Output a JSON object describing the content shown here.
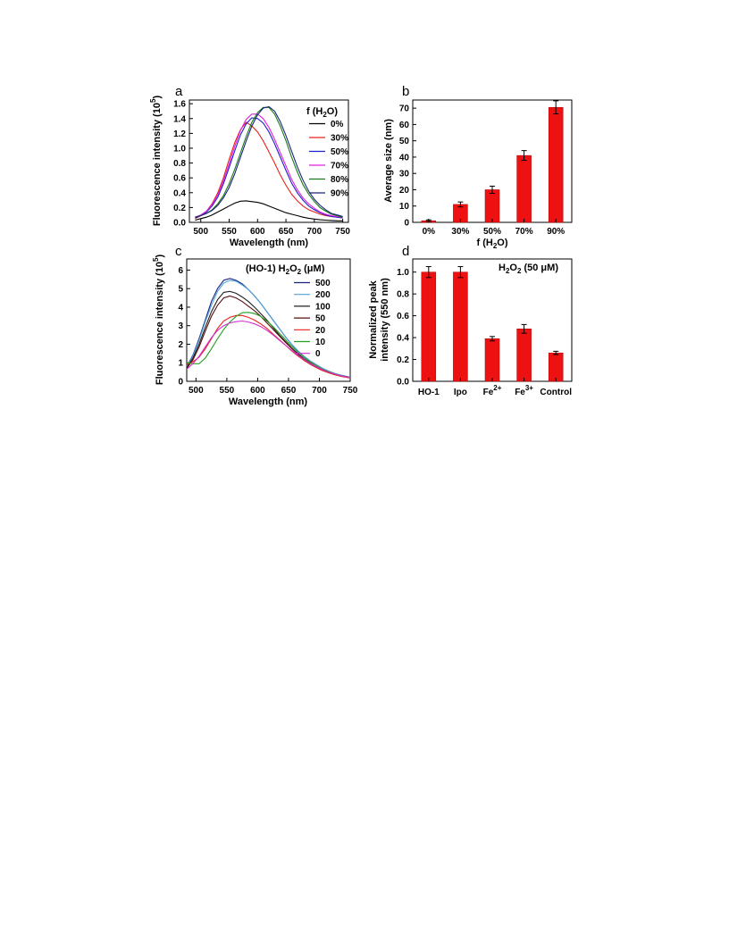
{
  "chart_data": [
    {
      "panel": "a",
      "type": "line",
      "xlabel": "Wavelength (nm)",
      "ylabel": "Fluorescence intensity (10 5)",
      "ylabel_main": "Fluorescence intensity (10",
      "ylabel_sup": "5",
      "ylabel_close": ")",
      "xlim": [
        480,
        760
      ],
      "ylim": [
        0,
        1.65
      ],
      "xticks": [
        "500",
        "550",
        "600",
        "650",
        "700",
        "750"
      ],
      "yticks": [
        "0.0",
        "0.2",
        "0.4",
        "0.6",
        "0.8",
        "1.0",
        "1.2",
        "1.4",
        "1.6"
      ],
      "legend_title": "f (H2O)",
      "legend_title_main": "f (H",
      "legend_title_sub": "2",
      "legend_title_close": "O)",
      "legend_position": "top-right",
      "grid": false,
      "x": [
        490,
        500,
        510,
        520,
        530,
        540,
        550,
        560,
        570,
        580,
        590,
        600,
        610,
        620,
        630,
        640,
        650,
        660,
        670,
        680,
        690,
        700,
        710,
        720,
        730,
        740,
        750
      ],
      "series": [
        {
          "name": "0%",
          "color": "#000000",
          "values": [
            0.03,
            0.05,
            0.07,
            0.1,
            0.14,
            0.18,
            0.22,
            0.26,
            0.285,
            0.29,
            0.28,
            0.27,
            0.25,
            0.22,
            0.19,
            0.16,
            0.13,
            0.11,
            0.09,
            0.07,
            0.055,
            0.045,
            0.035,
            0.03,
            0.025,
            0.02,
            0.02
          ]
        },
        {
          "name": "30%",
          "color": "#e8231b",
          "values": [
            0.05,
            0.09,
            0.15,
            0.25,
            0.4,
            0.6,
            0.85,
            1.08,
            1.25,
            1.35,
            1.3,
            1.22,
            1.1,
            0.95,
            0.8,
            0.64,
            0.5,
            0.38,
            0.29,
            0.22,
            0.17,
            0.14,
            0.11,
            0.09,
            0.08,
            0.07,
            0.06
          ]
        },
        {
          "name": "50%",
          "color": "#1f1fc8",
          "values": [
            0.06,
            0.09,
            0.14,
            0.22,
            0.34,
            0.52,
            0.74,
            0.97,
            1.18,
            1.33,
            1.41,
            1.4,
            1.34,
            1.22,
            1.06,
            0.88,
            0.7,
            0.53,
            0.4,
            0.3,
            0.22,
            0.17,
            0.13,
            0.1,
            0.08,
            0.07,
            0.06
          ]
        },
        {
          "name": "70%",
          "color": "#e020e0",
          "values": [
            0.07,
            0.1,
            0.15,
            0.24,
            0.37,
            0.56,
            0.79,
            1.03,
            1.24,
            1.39,
            1.46,
            1.46,
            1.4,
            1.28,
            1.12,
            0.94,
            0.76,
            0.58,
            0.44,
            0.33,
            0.25,
            0.19,
            0.14,
            0.11,
            0.09,
            0.08,
            0.07
          ]
        },
        {
          "name": "80%",
          "color": "#1a7a1a",
          "values": [
            0.07,
            0.09,
            0.12,
            0.17,
            0.25,
            0.36,
            0.52,
            0.72,
            0.94,
            1.16,
            1.35,
            1.48,
            1.55,
            1.55,
            1.46,
            1.3,
            1.1,
            0.88,
            0.68,
            0.51,
            0.38,
            0.28,
            0.2,
            0.15,
            0.11,
            0.09,
            0.07
          ]
        },
        {
          "name": "90%",
          "color": "#1a237e",
          "values": [
            0.07,
            0.09,
            0.12,
            0.16,
            0.23,
            0.33,
            0.47,
            0.66,
            0.88,
            1.1,
            1.3,
            1.45,
            1.54,
            1.56,
            1.5,
            1.36,
            1.17,
            0.96,
            0.75,
            0.57,
            0.42,
            0.31,
            0.23,
            0.17,
            0.12,
            0.1,
            0.08
          ]
        }
      ]
    },
    {
      "panel": "b",
      "type": "bar",
      "xlabel": "f (H2O)",
      "xlabel_main": "f (H",
      "xlabel_sub": "2",
      "xlabel_close": "O)",
      "ylabel": "Average size (nm)",
      "ylim": [
        0,
        75
      ],
      "yticks": [
        "0",
        "10",
        "20",
        "30",
        "40",
        "50",
        "60",
        "70"
      ],
      "categories": [
        "0%",
        "30%",
        "50%",
        "70%",
        "90%"
      ],
      "values": [
        1,
        11,
        20,
        41,
        70.5
      ],
      "errors": [
        0.5,
        1.5,
        2.2,
        3,
        4
      ],
      "bar_color": "#ee1111",
      "grid": false
    },
    {
      "panel": "c",
      "type": "line",
      "xlabel": "Wavelength (nm)",
      "ylabel": "Fluorescence intensity (10 5)",
      "ylabel_main": "Fluorescence intensity (10",
      "ylabel_sup": "5",
      "ylabel_close": ")",
      "xlim": [
        485,
        750
      ],
      "ylim": [
        0,
        6.6
      ],
      "xticks": [
        "500",
        "550",
        "600",
        "650",
        "700",
        "750"
      ],
      "yticks": [
        "0",
        "1",
        "2",
        "3",
        "4",
        "5",
        "6"
      ],
      "legend_title": "(HO-1) H2O2 (μM)",
      "legend_title_a": "(HO-1) H",
      "legend_title_b": "2",
      "legend_title_c": "O",
      "legend_title_d": "2",
      "legend_title_e": " (μM)",
      "legend_position": "top-right",
      "grid": false,
      "x": [
        485,
        495,
        505,
        515,
        525,
        535,
        545,
        555,
        565,
        575,
        585,
        595,
        605,
        615,
        625,
        635,
        645,
        655,
        665,
        675,
        685,
        695,
        705,
        715,
        725,
        735,
        750
      ],
      "series": [
        {
          "name": "500",
          "color": "#1a237e",
          "values": [
            0.8,
            1.4,
            2.3,
            3.3,
            4.3,
            5.0,
            5.45,
            5.55,
            5.45,
            5.25,
            4.95,
            4.6,
            4.2,
            3.75,
            3.3,
            2.85,
            2.4,
            2.0,
            1.65,
            1.35,
            1.1,
            0.9,
            0.7,
            0.55,
            0.42,
            0.33,
            0.22
          ]
        },
        {
          "name": "200",
          "color": "#4fa3d9",
          "values": [
            0.8,
            1.35,
            2.2,
            3.2,
            4.1,
            4.85,
            5.3,
            5.45,
            5.4,
            5.2,
            4.95,
            4.6,
            4.2,
            3.75,
            3.3,
            2.85,
            2.4,
            2.0,
            1.65,
            1.35,
            1.1,
            0.9,
            0.7,
            0.55,
            0.42,
            0.33,
            0.22
          ]
        },
        {
          "name": "100",
          "color": "#222222",
          "values": [
            0.75,
            1.25,
            2.0,
            2.9,
            3.75,
            4.4,
            4.8,
            4.85,
            4.75,
            4.55,
            4.3,
            4.0,
            3.65,
            3.3,
            2.9,
            2.5,
            2.15,
            1.8,
            1.5,
            1.22,
            1.0,
            0.8,
            0.63,
            0.5,
            0.38,
            0.3,
            0.2
          ]
        },
        {
          "name": "50",
          "color": "#5a0f0f",
          "values": [
            0.7,
            1.15,
            1.85,
            2.7,
            3.5,
            4.1,
            4.5,
            4.6,
            4.5,
            4.3,
            4.05,
            3.8,
            3.5,
            3.15,
            2.8,
            2.45,
            2.1,
            1.78,
            1.48,
            1.2,
            0.98,
            0.78,
            0.62,
            0.48,
            0.37,
            0.29,
            0.19
          ]
        },
        {
          "name": "20",
          "color": "#e8231b",
          "values": [
            0.9,
            1.05,
            1.3,
            1.75,
            2.3,
            2.85,
            3.25,
            3.45,
            3.55,
            3.55,
            3.45,
            3.3,
            3.1,
            2.85,
            2.55,
            2.25,
            1.95,
            1.65,
            1.38,
            1.13,
            0.92,
            0.74,
            0.58,
            0.46,
            0.35,
            0.27,
            0.18
          ]
        },
        {
          "name": "10",
          "color": "#22a022",
          "values": [
            1.0,
            0.95,
            0.95,
            1.25,
            1.75,
            2.3,
            2.8,
            3.2,
            3.5,
            3.7,
            3.72,
            3.65,
            3.5,
            3.25,
            2.95,
            2.6,
            2.25,
            1.9,
            1.58,
            1.3,
            1.05,
            0.84,
            0.66,
            0.52,
            0.4,
            0.31,
            0.2
          ]
        },
        {
          "name": "0",
          "color": "#d02fd0",
          "values": [
            0.65,
            0.95,
            1.35,
            1.85,
            2.35,
            2.75,
            3.0,
            3.15,
            3.22,
            3.25,
            3.2,
            3.1,
            2.95,
            2.75,
            2.5,
            2.22,
            1.95,
            1.68,
            1.42,
            1.18,
            0.97,
            0.79,
            0.63,
            0.5,
            0.39,
            0.3,
            0.2
          ]
        }
      ]
    },
    {
      "panel": "d",
      "type": "bar",
      "ylabel": "Normalized peak intensity (550 nm)",
      "ylabel_line1": "Normalized peak",
      "ylabel_line2": "intensity (550 nm)",
      "ylim": [
        0,
        1.12
      ],
      "yticks": [
        "0.0",
        "0.2",
        "0.4",
        "0.6",
        "0.8",
        "1.0"
      ],
      "categories": [
        "HO-1",
        "Ipo",
        "Fe2+",
        "Fe3+",
        "Control"
      ],
      "category_labels": [
        {
          "main": "HO-1",
          "sup": ""
        },
        {
          "main": "Ipo",
          "sup": ""
        },
        {
          "main": "Fe",
          "sup": "2+"
        },
        {
          "main": "Fe",
          "sup": "3+"
        },
        {
          "main": "Control",
          "sup": ""
        }
      ],
      "values": [
        1.0,
        1.0,
        0.39,
        0.48,
        0.26
      ],
      "errors": [
        0.05,
        0.05,
        0.02,
        0.04,
        0.015
      ],
      "bar_color": "#ee1111",
      "annotation": "H2O2 (50 μM)",
      "annotation_a": "H",
      "annotation_b": "2",
      "annotation_c": "O",
      "annotation_d": "2",
      "annotation_e": " (50 μM)",
      "grid": false
    }
  ]
}
